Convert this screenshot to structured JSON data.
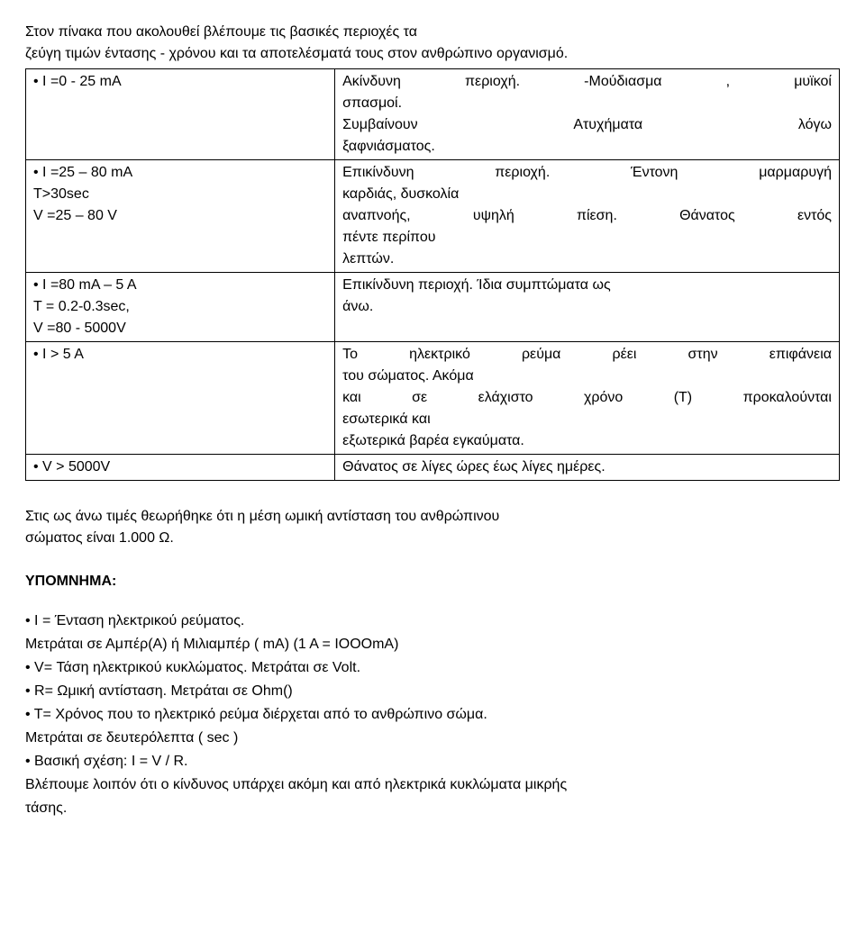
{
  "intro": {
    "line1": "Στον πίνακα που ακολουθεί βλέπουμε τις βασικές περιοχές τα",
    "line2": "ζεύγη τιμών έντασης - χρόνου και τα αποτελέσματά τους στον ανθρώπινο οργανισμό."
  },
  "table": {
    "rows": [
      {
        "left": "• I =0 - 25 mA",
        "right_l1_words": [
          "Ακίνδυνη",
          "περιοχή.",
          "-Μούδιασμα",
          ",",
          "μυϊκοί"
        ],
        "right_l2": "σπασμοί.",
        "right_l3_words": [
          "Συμβαίνουν",
          "Ατυχήματα",
          "λόγω"
        ],
        "right_l4": "ξαφνιάσματος."
      },
      {
        "left_l1": "• I =25 – 80 mA",
        "left_l2": "T>30sec",
        "left_l3": "V =25 – 80 V",
        "right_l1_words": [
          "Επικίνδυνη",
          "περιοχή.",
          "Έντονη",
          "μαρμαρυγή"
        ],
        "right_l2": "καρδιάς, δυσκολία",
        "right_l3_words": [
          "αναπνοής,",
          "υψηλή",
          "πίεση.",
          "Θάνατος",
          "εντός"
        ],
        "right_l4": "πέντε περίπου",
        "right_l5": "λεπτών."
      },
      {
        "left_l1": "• I =80 mA – 5 A",
        "left_l2": "T = 0.2-0.3sec,",
        "left_l3": "V =80 - 5000V",
        "right_l1": "Επικίνδυνη περιοχή. Ίδια συμπτώματα ως",
        "right_l2": "άνω."
      },
      {
        "left": "• I > 5 A",
        "right_l1_words": [
          "Το",
          "ηλεκτρικό",
          "ρεύμα",
          "ρέει",
          "στην",
          "επιφάνεια"
        ],
        "right_l2": "του σώματος. Ακόμα",
        "right_l3_words": [
          "και",
          "σε",
          "ελάχιστο",
          "χρόνο",
          "(Τ)",
          "προκαλούνται"
        ],
        "right_l4": "εσωτερικά και",
        "right_l5": "εξωτερικά βαρέα εγκαύματα."
      },
      {
        "left": "• V > 5000V",
        "right": "Θάνατος σε λίγες ώρες έως λίγες ημέρες."
      }
    ]
  },
  "note": {
    "line1": "Στις ως άνω τιμές θεωρήθηκε ότι η μέση ωμική αντίσταση του ανθρώπινου",
    "line2": "σώματος είναι 1.000 Ω."
  },
  "legend": {
    "title": "ΥΠΟΜΝΗΜΑ:",
    "items": {
      "l1": "• Ι = Ένταση ηλεκτρικού ρεύματος.",
      "l2": "Μετράται σε Αμπέρ(Α) ή Μιλιαμπέρ ( mΑ) (1 Α = ΙΟΟΟmΑ)",
      "l3": "• V= Τάση ηλεκτρικού κυκλώματος. Μετράται σε Volt.",
      "l4": "• R= Ωμική αντίσταση. Μετράται σε Ohm()",
      "l5": "• Τ= Χρόνος που το ηλεκτρικό ρεύμα διέρχεται από το ανθρώπινο σώμα.",
      "l6": "Μετράται σε δευτερόλεπτα ( sec )",
      "l7": "• Βασική σχέση: Ι = V / R.",
      "l8": "Βλέπουμε λοιπόν ότι ο κίνδυνος υπάρχει ακόμη και από ηλεκτρικά κυκλώματα μικρής",
      "l9": "τάσης."
    }
  }
}
